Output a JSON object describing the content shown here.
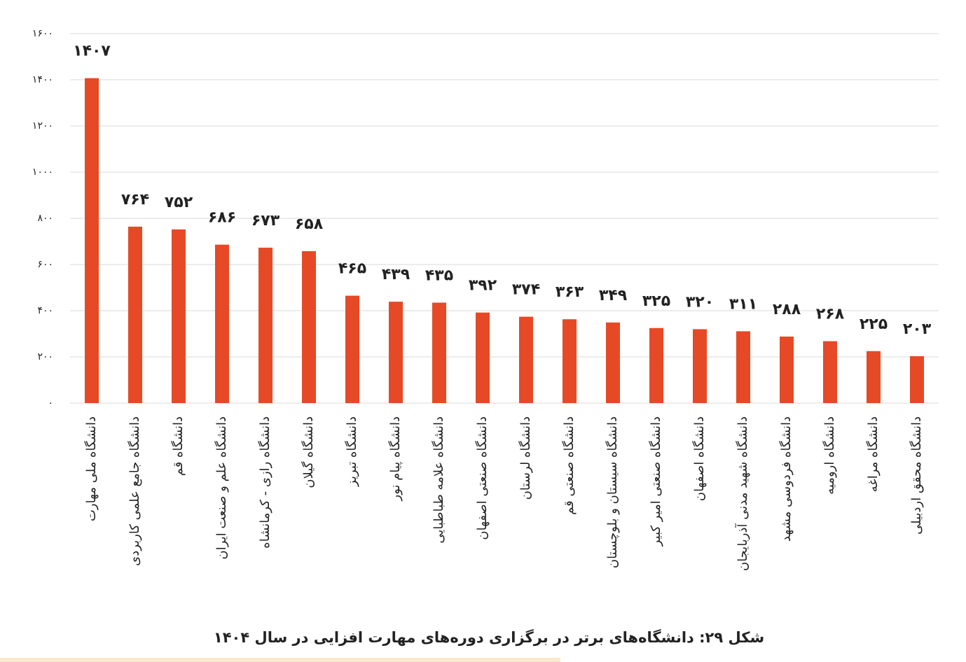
{
  "chart_data": {
    "type": "bar",
    "caption": "شکل ۲۹: دانشگاه‌های برتر در برگزاری دوره‌های  مهارت افزایی در سال ۱۴۰۴",
    "categories": [
      "دانشگاه ملی مهارت",
      "دانشگاه جامع علمی کاربردی",
      "دانشگاه قم",
      "دانشگاه علم و صنعت ایران",
      "دانشگاه رازی - کرمانشاه",
      "دانشگاه گیلان",
      "دانشگاه تبریز",
      "دانشگاه پیام نور",
      "دانشگاه علامه طباطبایی",
      "دانشگاه صنعتی اصفهان",
      "دانشگاه لرستان",
      "دانشگاه صنعتی قم",
      "دانشگاه سیستان و بلوچستان",
      "دانشگاه صنعتی امیر کبیر",
      "دانشگاه اصفهان",
      "دانشگاه شهید مدنی آذربایجان",
      "دانشگاه فردوسی مشهد",
      "دانشگاه ارومیه",
      "دانشگاه مراغه",
      "دانشگاه محقق اردبیلی"
    ],
    "values": [
      1407,
      764,
      752,
      686,
      673,
      658,
      465,
      439,
      435,
      392,
      374,
      363,
      349,
      325,
      320,
      311,
      288,
      268,
      225,
      203
    ],
    "value_labels": [
      "۱۴۰۷",
      "۷۶۴",
      "۷۵۲",
      "۶۸۶",
      "۶۷۳",
      "۶۵۸",
      "۴۶۵",
      "۴۳۹",
      "۴۳۵",
      "۳۹۲",
      "۳۷۴",
      "۳۶۳",
      "۳۴۹",
      "۳۲۵",
      "۳۲۰",
      "۳۱۱",
      "۲۸۸",
      "۲۶۸",
      "۲۲۵",
      "۲۰۳"
    ],
    "color": "#e64926",
    "ylim": [
      0,
      1600
    ],
    "yticks": [
      {
        "value": 0,
        "label": "۰"
      },
      {
        "value": 200,
        "label": "۲۰۰"
      },
      {
        "value": 400,
        "label": "۴۰۰"
      },
      {
        "value": 600,
        "label": "۶۰۰"
      },
      {
        "value": 800,
        "label": "۸۰۰"
      },
      {
        "value": 1000,
        "label": "۱۰۰۰"
      },
      {
        "value": 1200,
        "label": "۱۲۰۰"
      },
      {
        "value": 1400,
        "label": "۱۴۰۰"
      },
      {
        "value": 1600,
        "label": "۱۶۰۰"
      }
    ],
    "grid": true
  }
}
